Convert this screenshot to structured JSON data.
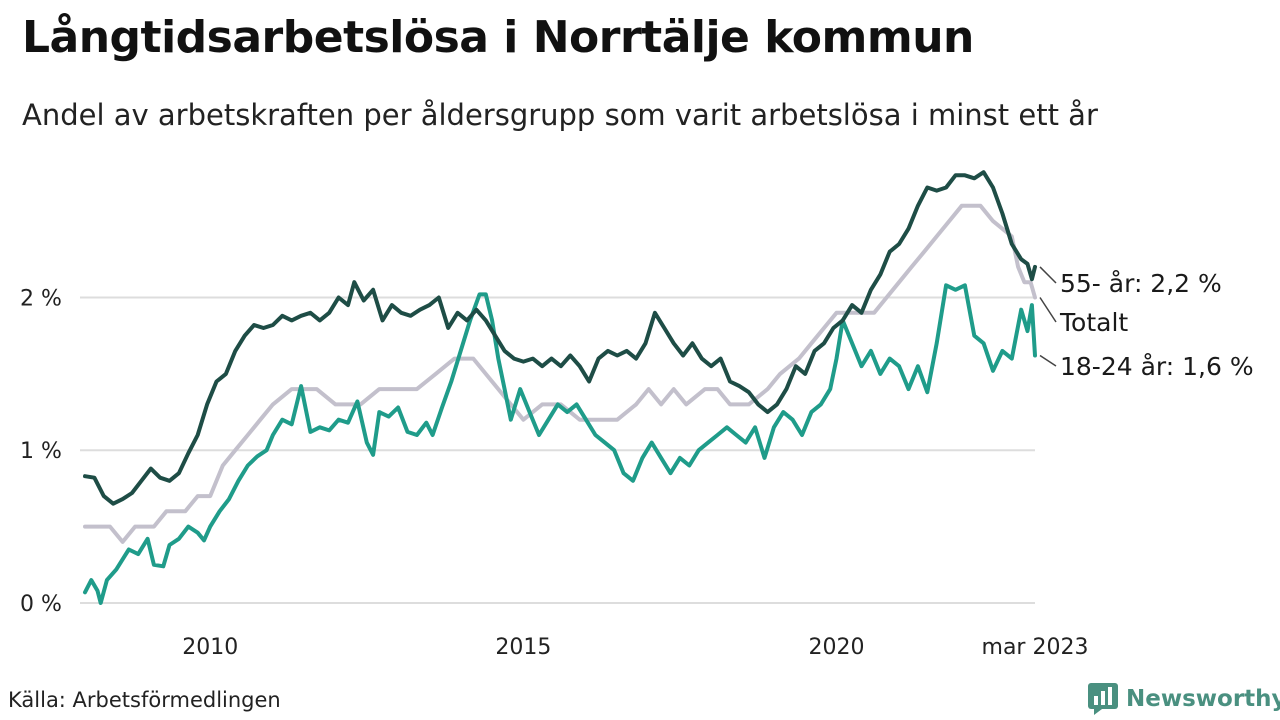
{
  "header": {
    "title": "Långtidsarbetslösa i Norrtälje kommun",
    "subtitle": "Andel av arbetskraften per åldersgrupp som varit arbetslösa i minst ett år"
  },
  "footer": {
    "source": "Källa: Arbetsförmedlingen",
    "brand": "Newsworthy",
    "brand_color": "#4a9080"
  },
  "chart_data": {
    "type": "line",
    "title": "Långtidsarbetslösa i Norrtälje kommun",
    "subtitle": "Andel av arbetskraften per åldersgrupp som varit arbetslösa i minst ett år",
    "ylim": [
      0,
      2.9
    ],
    "xlim": [
      2008.0,
      2023.17
    ],
    "y_ticks": [
      {
        "value": 0,
        "label": "0 %"
      },
      {
        "value": 1,
        "label": "1 %"
      },
      {
        "value": 2,
        "label": "2 %"
      }
    ],
    "x_ticks": [
      {
        "value": 2010,
        "label": "2010"
      },
      {
        "value": 2015,
        "label": "2015"
      },
      {
        "value": 2020,
        "label": "2020"
      },
      {
        "value": 2023.17,
        "label": "mar 2023"
      }
    ],
    "grid": "horizontal",
    "series": [
      {
        "key": "total",
        "color": "#c3c0cc",
        "end_label": "Totalt",
        "points": [
          [
            2008.0,
            0.5
          ],
          [
            2008.4,
            0.5
          ],
          [
            2008.6,
            0.4
          ],
          [
            2008.8,
            0.5
          ],
          [
            2009.1,
            0.5
          ],
          [
            2009.3,
            0.6
          ],
          [
            2009.6,
            0.6
          ],
          [
            2009.8,
            0.7
          ],
          [
            2010.0,
            0.7
          ],
          [
            2010.2,
            0.9
          ],
          [
            2010.4,
            1.0
          ],
          [
            2010.6,
            1.1
          ],
          [
            2010.8,
            1.2
          ],
          [
            2011.0,
            1.3
          ],
          [
            2011.3,
            1.4
          ],
          [
            2011.7,
            1.4
          ],
          [
            2012.0,
            1.3
          ],
          [
            2012.4,
            1.3
          ],
          [
            2012.7,
            1.4
          ],
          [
            2013.0,
            1.4
          ],
          [
            2013.3,
            1.4
          ],
          [
            2013.6,
            1.5
          ],
          [
            2013.9,
            1.6
          ],
          [
            2014.2,
            1.6
          ],
          [
            2014.4,
            1.5
          ],
          [
            2014.6,
            1.4
          ],
          [
            2014.8,
            1.3
          ],
          [
            2015.0,
            1.2
          ],
          [
            2015.3,
            1.3
          ],
          [
            2015.6,
            1.3
          ],
          [
            2015.9,
            1.2
          ],
          [
            2016.2,
            1.2
          ],
          [
            2016.5,
            1.2
          ],
          [
            2016.8,
            1.3
          ],
          [
            2017.0,
            1.4
          ],
          [
            2017.2,
            1.3
          ],
          [
            2017.4,
            1.4
          ],
          [
            2017.6,
            1.3
          ],
          [
            2017.9,
            1.4
          ],
          [
            2018.1,
            1.4
          ],
          [
            2018.3,
            1.3
          ],
          [
            2018.6,
            1.3
          ],
          [
            2018.9,
            1.4
          ],
          [
            2019.1,
            1.5
          ],
          [
            2019.4,
            1.6
          ],
          [
            2019.6,
            1.7
          ],
          [
            2019.8,
            1.8
          ],
          [
            2020.0,
            1.9
          ],
          [
            2020.3,
            1.9
          ],
          [
            2020.6,
            1.9
          ],
          [
            2020.8,
            2.0
          ],
          [
            2021.0,
            2.1
          ],
          [
            2021.2,
            2.2
          ],
          [
            2021.4,
            2.3
          ],
          [
            2021.6,
            2.4
          ],
          [
            2021.8,
            2.5
          ],
          [
            2022.0,
            2.6
          ],
          [
            2022.3,
            2.6
          ],
          [
            2022.5,
            2.5
          ],
          [
            2022.8,
            2.4
          ],
          [
            2022.9,
            2.2
          ],
          [
            2023.0,
            2.1
          ],
          [
            2023.1,
            2.1
          ],
          [
            2023.17,
            2.0
          ]
        ]
      },
      {
        "key": "young",
        "color": "#1f9c8a",
        "end_label": "18-24 år: 1,6 %",
        "points": [
          [
            2008.0,
            0.07
          ],
          [
            2008.1,
            0.15
          ],
          [
            2008.2,
            0.08
          ],
          [
            2008.25,
            0.0
          ],
          [
            2008.35,
            0.15
          ],
          [
            2008.5,
            0.22
          ],
          [
            2008.7,
            0.35
          ],
          [
            2008.85,
            0.32
          ],
          [
            2009.0,
            0.42
          ],
          [
            2009.1,
            0.25
          ],
          [
            2009.25,
            0.24
          ],
          [
            2009.35,
            0.38
          ],
          [
            2009.5,
            0.42
          ],
          [
            2009.65,
            0.5
          ],
          [
            2009.8,
            0.46
          ],
          [
            2009.9,
            0.41
          ],
          [
            2010.0,
            0.5
          ],
          [
            2010.15,
            0.6
          ],
          [
            2010.3,
            0.68
          ],
          [
            2010.45,
            0.8
          ],
          [
            2010.6,
            0.9
          ],
          [
            2010.75,
            0.96
          ],
          [
            2010.9,
            1.0
          ],
          [
            2011.0,
            1.1
          ],
          [
            2011.15,
            1.2
          ],
          [
            2011.3,
            1.17
          ],
          [
            2011.45,
            1.42
          ],
          [
            2011.6,
            1.12
          ],
          [
            2011.75,
            1.15
          ],
          [
            2011.9,
            1.13
          ],
          [
            2012.05,
            1.2
          ],
          [
            2012.2,
            1.18
          ],
          [
            2012.35,
            1.32
          ],
          [
            2012.5,
            1.05
          ],
          [
            2012.6,
            0.97
          ],
          [
            2012.7,
            1.25
          ],
          [
            2012.85,
            1.22
          ],
          [
            2013.0,
            1.28
          ],
          [
            2013.15,
            1.12
          ],
          [
            2013.3,
            1.1
          ],
          [
            2013.45,
            1.18
          ],
          [
            2013.55,
            1.1
          ],
          [
            2013.7,
            1.28
          ],
          [
            2013.85,
            1.45
          ],
          [
            2014.0,
            1.65
          ],
          [
            2014.15,
            1.85
          ],
          [
            2014.3,
            2.02
          ],
          [
            2014.4,
            2.02
          ],
          [
            2014.5,
            1.85
          ],
          [
            2014.6,
            1.6
          ],
          [
            2014.7,
            1.4
          ],
          [
            2014.8,
            1.2
          ],
          [
            2014.95,
            1.4
          ],
          [
            2015.1,
            1.25
          ],
          [
            2015.25,
            1.1
          ],
          [
            2015.4,
            1.2
          ],
          [
            2015.55,
            1.3
          ],
          [
            2015.7,
            1.25
          ],
          [
            2015.85,
            1.3
          ],
          [
            2016.0,
            1.2
          ],
          [
            2016.15,
            1.1
          ],
          [
            2016.3,
            1.05
          ],
          [
            2016.45,
            1.0
          ],
          [
            2016.6,
            0.85
          ],
          [
            2016.75,
            0.8
          ],
          [
            2016.9,
            0.95
          ],
          [
            2017.05,
            1.05
          ],
          [
            2017.2,
            0.95
          ],
          [
            2017.35,
            0.85
          ],
          [
            2017.5,
            0.95
          ],
          [
            2017.65,
            0.9
          ],
          [
            2017.8,
            1.0
          ],
          [
            2017.95,
            1.05
          ],
          [
            2018.1,
            1.1
          ],
          [
            2018.25,
            1.15
          ],
          [
            2018.4,
            1.1
          ],
          [
            2018.55,
            1.05
          ],
          [
            2018.7,
            1.15
          ],
          [
            2018.85,
            0.95
          ],
          [
            2019.0,
            1.15
          ],
          [
            2019.15,
            1.25
          ],
          [
            2019.3,
            1.2
          ],
          [
            2019.45,
            1.1
          ],
          [
            2019.6,
            1.25
          ],
          [
            2019.75,
            1.3
          ],
          [
            2019.9,
            1.4
          ],
          [
            2020.0,
            1.6
          ],
          [
            2020.1,
            1.85
          ],
          [
            2020.25,
            1.7
          ],
          [
            2020.4,
            1.55
          ],
          [
            2020.55,
            1.65
          ],
          [
            2020.7,
            1.5
          ],
          [
            2020.85,
            1.6
          ],
          [
            2021.0,
            1.55
          ],
          [
            2021.15,
            1.4
          ],
          [
            2021.3,
            1.55
          ],
          [
            2021.45,
            1.38
          ],
          [
            2021.6,
            1.7
          ],
          [
            2021.75,
            2.08
          ],
          [
            2021.9,
            2.05
          ],
          [
            2022.05,
            2.08
          ],
          [
            2022.2,
            1.75
          ],
          [
            2022.35,
            1.7
          ],
          [
            2022.5,
            1.52
          ],
          [
            2022.65,
            1.65
          ],
          [
            2022.8,
            1.6
          ],
          [
            2022.95,
            1.92
          ],
          [
            2023.05,
            1.78
          ],
          [
            2023.12,
            1.95
          ],
          [
            2023.17,
            1.62
          ]
        ]
      },
      {
        "key": "old",
        "color": "#1e4d46",
        "end_label": "55- år: 2,2 %",
        "points": [
          [
            2008.0,
            0.83
          ],
          [
            2008.15,
            0.82
          ],
          [
            2008.3,
            0.7
          ],
          [
            2008.45,
            0.65
          ],
          [
            2008.6,
            0.68
          ],
          [
            2008.75,
            0.72
          ],
          [
            2008.9,
            0.8
          ],
          [
            2009.05,
            0.88
          ],
          [
            2009.2,
            0.82
          ],
          [
            2009.35,
            0.8
          ],
          [
            2009.5,
            0.85
          ],
          [
            2009.65,
            0.98
          ],
          [
            2009.8,
            1.1
          ],
          [
            2009.95,
            1.3
          ],
          [
            2010.1,
            1.45
          ],
          [
            2010.25,
            1.5
          ],
          [
            2010.4,
            1.65
          ],
          [
            2010.55,
            1.75
          ],
          [
            2010.7,
            1.82
          ],
          [
            2010.85,
            1.8
          ],
          [
            2011.0,
            1.82
          ],
          [
            2011.15,
            1.88
          ],
          [
            2011.3,
            1.85
          ],
          [
            2011.45,
            1.88
          ],
          [
            2011.6,
            1.9
          ],
          [
            2011.75,
            1.85
          ],
          [
            2011.9,
            1.9
          ],
          [
            2012.05,
            2.0
          ],
          [
            2012.2,
            1.95
          ],
          [
            2012.3,
            2.1
          ],
          [
            2012.45,
            1.98
          ],
          [
            2012.6,
            2.05
          ],
          [
            2012.75,
            1.85
          ],
          [
            2012.9,
            1.95
          ],
          [
            2013.05,
            1.9
          ],
          [
            2013.2,
            1.88
          ],
          [
            2013.35,
            1.92
          ],
          [
            2013.5,
            1.95
          ],
          [
            2013.65,
            2.0
          ],
          [
            2013.8,
            1.8
          ],
          [
            2013.95,
            1.9
          ],
          [
            2014.1,
            1.85
          ],
          [
            2014.25,
            1.92
          ],
          [
            2014.4,
            1.85
          ],
          [
            2014.55,
            1.75
          ],
          [
            2014.7,
            1.65
          ],
          [
            2014.85,
            1.6
          ],
          [
            2015.0,
            1.58
          ],
          [
            2015.15,
            1.6
          ],
          [
            2015.3,
            1.55
          ],
          [
            2015.45,
            1.6
          ],
          [
            2015.6,
            1.55
          ],
          [
            2015.75,
            1.62
          ],
          [
            2015.9,
            1.55
          ],
          [
            2016.05,
            1.45
          ],
          [
            2016.2,
            1.6
          ],
          [
            2016.35,
            1.65
          ],
          [
            2016.5,
            1.62
          ],
          [
            2016.65,
            1.65
          ],
          [
            2016.8,
            1.6
          ],
          [
            2016.95,
            1.7
          ],
          [
            2017.1,
            1.9
          ],
          [
            2017.25,
            1.8
          ],
          [
            2017.4,
            1.7
          ],
          [
            2017.55,
            1.62
          ],
          [
            2017.7,
            1.7
          ],
          [
            2017.85,
            1.6
          ],
          [
            2018.0,
            1.55
          ],
          [
            2018.15,
            1.6
          ],
          [
            2018.3,
            1.45
          ],
          [
            2018.45,
            1.42
          ],
          [
            2018.6,
            1.38
          ],
          [
            2018.75,
            1.3
          ],
          [
            2018.9,
            1.25
          ],
          [
            2019.05,
            1.3
          ],
          [
            2019.2,
            1.4
          ],
          [
            2019.35,
            1.55
          ],
          [
            2019.5,
            1.5
          ],
          [
            2019.65,
            1.65
          ],
          [
            2019.8,
            1.7
          ],
          [
            2019.95,
            1.8
          ],
          [
            2020.1,
            1.85
          ],
          [
            2020.25,
            1.95
          ],
          [
            2020.4,
            1.9
          ],
          [
            2020.55,
            2.05
          ],
          [
            2020.7,
            2.15
          ],
          [
            2020.85,
            2.3
          ],
          [
            2021.0,
            2.35
          ],
          [
            2021.15,
            2.45
          ],
          [
            2021.3,
            2.6
          ],
          [
            2021.45,
            2.72
          ],
          [
            2021.6,
            2.7
          ],
          [
            2021.75,
            2.72
          ],
          [
            2021.9,
            2.8
          ],
          [
            2022.05,
            2.8
          ],
          [
            2022.2,
            2.78
          ],
          [
            2022.35,
            2.82
          ],
          [
            2022.5,
            2.72
          ],
          [
            2022.65,
            2.55
          ],
          [
            2022.8,
            2.35
          ],
          [
            2022.95,
            2.25
          ],
          [
            2023.05,
            2.22
          ],
          [
            2023.12,
            2.12
          ],
          [
            2023.17,
            2.2
          ]
        ]
      }
    ]
  }
}
